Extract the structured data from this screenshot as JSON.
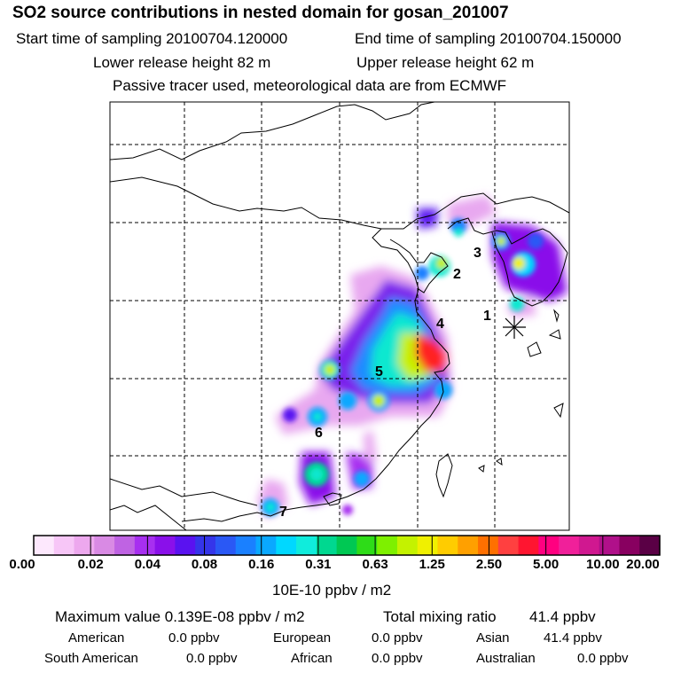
{
  "header": {
    "title": "SO2 source contributions in nested domain for gosan_201007",
    "start_label": "Start time of sampling 20100704.120000",
    "end_label": "End time of sampling 20100704.150000",
    "lower_label": "Lower release height   82 m",
    "upper_label": "Upper release height   62 m",
    "info": "Passive tracer used, meteorological data are from ECMWF"
  },
  "map": {
    "source_markers": [
      "1",
      "2",
      "3",
      "4",
      "5",
      "6",
      "7"
    ],
    "receptor_symbol": "star-asterisk"
  },
  "colorbar": {
    "colors": [
      "#fde8fd",
      "#f7c6f7",
      "#eda8ee",
      "#d98ae4",
      "#bf63e3",
      "#a72ff0",
      "#8a10ea",
      "#5a12f0",
      "#3535ea",
      "#2a58f5",
      "#1a80ff",
      "#0aa8ff",
      "#00d8ff",
      "#10ecdc",
      "#00d890",
      "#00c853",
      "#2edc18",
      "#7ef000",
      "#c4f200",
      "#f0f000",
      "#ffcc00",
      "#ffa000",
      "#ff7000",
      "#ff4040",
      "#ff1530",
      "#ff0080",
      "#f0209a",
      "#d01890",
      "#b0108a",
      "#880060",
      "#5a0045"
    ],
    "tick_labels": [
      "0.00",
      "0.02",
      "0.04",
      "0.08",
      "0.16",
      "0.31",
      "0.63",
      "1.25",
      "2.50",
      "5.00",
      "10.00",
      "20.00"
    ],
    "unit": "10E-10 ppbv / m2"
  },
  "summary": {
    "max_value": "Maximum value  0.139E-08 ppbv / m2",
    "total_label": "Total mixing ratio",
    "total_value": "41.4 ppbv",
    "regions": [
      {
        "name": "American",
        "value": "0.0 ppbv"
      },
      {
        "name": "European",
        "value": "0.0 ppbv"
      },
      {
        "name": "Asian",
        "value": "41.4 ppbv"
      },
      {
        "name": "South American",
        "value": "0.0 ppbv"
      },
      {
        "name": "African",
        "value": "0.0 ppbv"
      },
      {
        "name": "Australian",
        "value": "0.0 ppbv"
      }
    ]
  }
}
